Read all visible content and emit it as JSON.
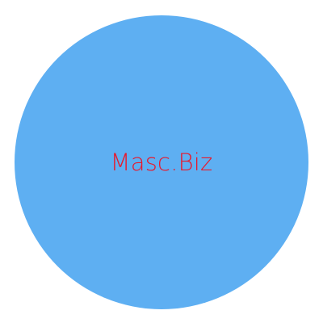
{
  "logo": {
    "text": "Masc.Biz",
    "circle_color": "#5eaff2",
    "text_color": "#e8192c"
  }
}
